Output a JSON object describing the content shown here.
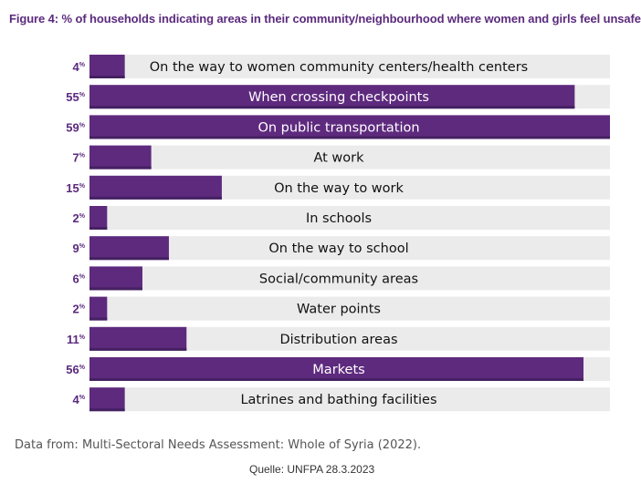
{
  "colors": {
    "bar": "#5e2a7e",
    "bar_shade": "#452062",
    "track": "#ebebeb",
    "title": "#5b2a7d",
    "label_on_bar": "#ffffff",
    "label_off_bar": "#111111"
  },
  "chart_data": {
    "type": "bar",
    "orientation": "horizontal",
    "title": "Figure 4: % of households indicating areas in their community/neighbourhood where women and girls feel unsafe",
    "unit": "%",
    "xlim": [
      0,
      59
    ],
    "grid": false,
    "categories": [
      "On the way to women community centers/health centers",
      "When crossing checkpoints",
      "On public transportation",
      "At work",
      "On the way to work",
      "In schools",
      "On the way to school",
      "Social/community areas",
      "Water points",
      "Distribution areas",
      "Markets",
      "Latrines and bathing facilities"
    ],
    "values": [
      4,
      55,
      59,
      7,
      15,
      2,
      9,
      6,
      2,
      11,
      56,
      4
    ],
    "source_note": "Data from: Multi-Sectoral Needs Assessment: Whole of Syria (2022).",
    "credit": "Quelle: UNFPA 28.3.2023"
  }
}
